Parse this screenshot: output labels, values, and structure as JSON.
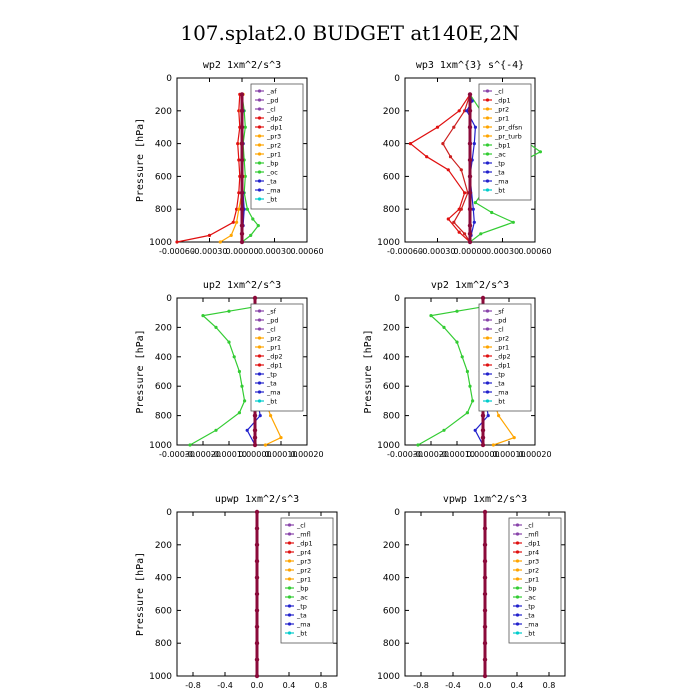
{
  "figure_title": "107.splat2.0  BUDGET at140E,2N",
  "chart_data": [
    {
      "type": "line",
      "title": "wp2  1xm^2/s^3",
      "ylabel": "Pressure [hPa]",
      "xlabel": "",
      "ylim": [
        1000,
        0
      ],
      "xlim": [
        -0.0006,
        0.0006
      ],
      "x_ticks": [
        "-0.00060",
        "-0.00030",
        "0.00000",
        "0.00030",
        "0.00060"
      ],
      "y_ticks": [
        "0",
        "200",
        "400",
        "600",
        "800",
        "1000"
      ],
      "legend": [
        "_af",
        "_pd",
        "_cl",
        "_dp2",
        "_dp1",
        "_pr3",
        "_pr2",
        "_pr1",
        "_bp",
        "_oc",
        "_ta",
        "_ma",
        "_bt"
      ],
      "series": [
        {
          "name": "_bp",
          "color": "#33cc33",
          "x": [
            0.0,
            2e-05,
            3e-05,
            1e-05,
            2e-05,
            3e-05,
            2e-05,
            5e-05,
            0.0001,
            0.00015,
            8e-05,
            0.0
          ],
          "y": [
            100,
            200,
            300,
            400,
            500,
            600,
            700,
            800,
            860,
            900,
            960,
            1000
          ]
        },
        {
          "name": "_pr3",
          "color": "#e01010",
          "x": [
            -2e-05,
            -3e-05,
            -2e-05,
            -4e-05,
            -3e-05,
            -2e-05,
            -3e-05,
            -5e-05,
            -8e-05,
            -0.0003,
            -0.0006
          ],
          "y": [
            100,
            200,
            300,
            400,
            500,
            600,
            700,
            800,
            880,
            960,
            1000
          ]
        },
        {
          "name": "_pr2",
          "color": "#ffa500",
          "x": [
            1e-05,
            -1e-05,
            0.0,
            -1e-05,
            0.0,
            1e-05,
            0.0,
            -3e-05,
            -5e-05,
            -0.0001,
            -0.0002
          ],
          "y": [
            100,
            200,
            300,
            400,
            500,
            600,
            700,
            800,
            880,
            960,
            1000
          ]
        },
        {
          "name": "_ta",
          "color": "#2222cc",
          "x": [
            0.0,
            1e-05,
            0.0,
            1e-05,
            0.0,
            0.0,
            1e-05,
            2e-05,
            1e-05,
            0.0
          ],
          "y": [
            100,
            200,
            300,
            400,
            500,
            600,
            700,
            800,
            900,
            1000
          ]
        },
        {
          "name": "_bt",
          "color": "#8b0a3a",
          "x": [
            0.0,
            0.0,
            0.0,
            0.0,
            0.0,
            0.0,
            0.0,
            0.0,
            0.0,
            0.0,
            0.0
          ],
          "y": [
            100,
            200,
            300,
            400,
            500,
            600,
            700,
            800,
            900,
            950,
            1000
          ]
        }
      ]
    },
    {
      "type": "line",
      "title": "wp3  1xm^{3} s^{-4}",
      "ylabel": "",
      "xlabel": "",
      "ylim": [
        1000,
        0
      ],
      "xlim": [
        -0.0006,
        0.0006
      ],
      "x_ticks": [
        "-0.00060",
        "-0.00030",
        "0.00000",
        "0.00030",
        "0.00060"
      ],
      "y_ticks": [
        "0",
        "200",
        "400",
        "600",
        "800",
        "1000"
      ],
      "legend": [
        "_cl",
        "_dp1",
        "_pr2",
        "_pr1",
        "_pr_dfsn",
        "_pr_turb",
        "_bp1",
        "_ac",
        "_tp",
        "_ta",
        "_ma",
        "_bt"
      ],
      "series": [
        {
          "name": "_bp1",
          "color": "#33cc33",
          "x": [
            0.0,
            0.0001,
            0.0003,
            0.0005,
            0.00065,
            0.00045,
            0.0002,
            5e-05,
            0.0002,
            0.0004,
            0.0001,
            0.0
          ],
          "y": [
            100,
            200,
            300,
            380,
            450,
            520,
            620,
            760,
            820,
            880,
            950,
            1000
          ]
        },
        {
          "name": "_pr2",
          "color": "#e01010",
          "x": [
            0.0,
            -0.0001,
            -0.0003,
            -0.00055,
            -0.0004,
            -0.0002,
            -5e-05,
            -0.0001,
            -0.0002,
            -0.0001,
            0.0
          ],
          "y": [
            100,
            200,
            300,
            400,
            480,
            560,
            700,
            800,
            860,
            940,
            1000
          ]
        },
        {
          "name": "_pr1",
          "color": "#cc2020",
          "x": [
            0.0,
            -5e-05,
            -0.00015,
            -0.00025,
            -0.00018,
            -8e-05,
            -2e-05,
            -8e-05,
            -0.00015,
            -5e-05,
            0.0
          ],
          "y": [
            100,
            200,
            300,
            400,
            480,
            560,
            700,
            800,
            880,
            950,
            1000
          ]
        },
        {
          "name": "_ta",
          "color": "#2222cc",
          "x": [
            0.0,
            2e-05,
            -3e-05,
            5e-05,
            4e-05,
            2e-05,
            0.0,
            3e-05,
            4e-05,
            1e-05,
            0.0
          ],
          "y": [
            100,
            140,
            200,
            300,
            400,
            500,
            600,
            800,
            880,
            960,
            1000
          ]
        },
        {
          "name": "_bt",
          "color": "#8b0a3a",
          "x": [
            0.0,
            0.0,
            0.0,
            0.0,
            0.0,
            0.0,
            0.0,
            0.0,
            0.0,
            0.0,
            0.0
          ],
          "y": [
            100,
            200,
            300,
            400,
            500,
            600,
            700,
            800,
            900,
            950,
            1000
          ]
        }
      ]
    },
    {
      "type": "line",
      "title": "up2  1xm^2/s^3",
      "ylabel": "Pressure [hPa]",
      "xlabel": "",
      "ylim": [
        1000,
        0
      ],
      "xlim": [
        -0.0003,
        0.0002
      ],
      "x_ticks": [
        "-0.00030",
        "-0.00020",
        "-0.00010",
        "0.00000",
        "0.00010",
        "0.00020"
      ],
      "y_ticks": [
        "0",
        "200",
        "400",
        "600",
        "800",
        "1000"
      ],
      "legend": [
        "_sf",
        "_pd",
        "_cl",
        "_pr2",
        "_pr1",
        "_dp2",
        "_dp1",
        "_tp",
        "_ta",
        "_ma",
        "_bt"
      ],
      "series": [
        {
          "name": "_pr1",
          "color": "#33cc33",
          "x": [
            0.0,
            -0.0001,
            -0.0002,
            -0.00015,
            -0.0001,
            -8e-05,
            -6e-05,
            -5e-05,
            -4e-05,
            -6e-05,
            -0.00015,
            -0.00025
          ],
          "y": [
            60,
            90,
            120,
            200,
            300,
            400,
            500,
            600,
            700,
            780,
            900,
            1000
          ]
        },
        {
          "name": "_pr2",
          "color": "#ffa500",
          "x": [
            5e-05,
            3e-05,
            1e-05,
            2e-05,
            2e-05,
            3e-05,
            3e-05,
            2e-05,
            4e-05,
            6e-05,
            0.0001,
            4e-05
          ],
          "y": [
            60,
            90,
            120,
            200,
            300,
            400,
            500,
            600,
            700,
            800,
            950,
            1000
          ]
        },
        {
          "name": "_tp",
          "color": "#2222cc",
          "x": [
            5e-05,
            3e-05,
            2e-05,
            2e-05,
            1e-05,
            1e-05,
            -1e-05,
            0.0,
            1e-05,
            2e-05,
            -3e-05,
            0.0
          ],
          "y": [
            60,
            90,
            120,
            200,
            300,
            400,
            500,
            600,
            700,
            800,
            900,
            1000
          ]
        },
        {
          "name": "_cl",
          "color": "#e01010",
          "x": [
            2e-05,
            1e-05,
            0.0,
            0.0,
            0.0,
            0.0,
            0.0,
            0.0,
            0.0,
            0.0,
            0.0,
            0.0
          ],
          "y": [
            60,
            90,
            120,
            200,
            300,
            400,
            500,
            600,
            700,
            800,
            900,
            1000
          ]
        },
        {
          "name": "_bt",
          "color": "#8b0a3a",
          "x": [
            0.0,
            0.0,
            0.0,
            0.0,
            0.0,
            0.0,
            0.0,
            0.0,
            0.0,
            0.0,
            0.0,
            0.0
          ],
          "y": [
            0,
            100,
            200,
            300,
            400,
            500,
            600,
            700,
            800,
            900,
            950,
            1000
          ]
        }
      ]
    },
    {
      "type": "line",
      "title": "vp2  1xm^2/s^3",
      "ylabel": "Pressure [hPa]",
      "xlabel": "",
      "ylim": [
        1000,
        0
      ],
      "xlim": [
        -0.0003,
        0.0002
      ],
      "x_ticks": [
        "-0.00030",
        "-0.00020",
        "-0.00010",
        "0.00000",
        "0.00010",
        "0.00020"
      ],
      "y_ticks": [
        "0",
        "200",
        "400",
        "600",
        "800",
        "1000"
      ],
      "legend": [
        "_sf",
        "_pd",
        "_cl",
        "_pr2",
        "_pr1",
        "_dp2",
        "_dp1",
        "_tp",
        "_ta",
        "_ma",
        "_bt"
      ],
      "series": [
        {
          "name": "_pr1",
          "color": "#33cc33",
          "x": [
            0.0,
            -0.0001,
            -0.0002,
            -0.00015,
            -0.0001,
            -8e-05,
            -6e-05,
            -5e-05,
            -4e-05,
            -6e-05,
            -0.00015,
            -0.00025
          ],
          "y": [
            60,
            90,
            120,
            200,
            300,
            400,
            500,
            600,
            700,
            780,
            900,
            1000
          ]
        },
        {
          "name": "_pr2",
          "color": "#ffa500",
          "x": [
            8e-05,
            4e-05,
            2e-05,
            2e-05,
            2e-05,
            3e-05,
            3e-05,
            2e-05,
            4e-05,
            6e-05,
            0.00012,
            4e-05
          ],
          "y": [
            60,
            90,
            120,
            200,
            300,
            400,
            500,
            600,
            700,
            800,
            950,
            1000
          ]
        },
        {
          "name": "_tp",
          "color": "#2222cc",
          "x": [
            0.0001,
            5e-05,
            2e-05,
            2e-05,
            1e-05,
            1e-05,
            -1e-05,
            0.0,
            1e-05,
            2e-05,
            -3e-05,
            0.0
          ],
          "y": [
            60,
            90,
            120,
            200,
            300,
            400,
            500,
            600,
            700,
            800,
            900,
            1000
          ]
        },
        {
          "name": "_cl",
          "color": "#e01010",
          "x": [
            2e-05,
            1e-05,
            0.0,
            0.0,
            0.0,
            0.0,
            0.0,
            0.0,
            0.0,
            0.0,
            0.0,
            0.0
          ],
          "y": [
            60,
            90,
            120,
            200,
            300,
            400,
            500,
            600,
            700,
            800,
            900,
            1000
          ]
        },
        {
          "name": "_bt",
          "color": "#8b0a3a",
          "x": [
            0.0,
            0.0,
            0.0,
            0.0,
            0.0,
            0.0,
            0.0,
            0.0,
            0.0,
            0.0,
            0.0,
            0.0
          ],
          "y": [
            0,
            100,
            200,
            300,
            400,
            500,
            600,
            700,
            800,
            900,
            950,
            1000
          ]
        }
      ]
    },
    {
      "type": "line",
      "title": "upwp  1xm^2/s^3",
      "ylabel": "Pressure [hPa]",
      "xlabel": "",
      "ylim": [
        1000,
        0
      ],
      "xlim": [
        -1.0,
        1.0
      ],
      "x_ticks": [
        "-0.8",
        "-0.4",
        "0.0",
        "0.4",
        "0.8"
      ],
      "y_ticks": [
        "0",
        "200",
        "400",
        "600",
        "800",
        "1000"
      ],
      "legend": [
        "_cl",
        "_mfl",
        "_dp1",
        "_pr4",
        "_pr3",
        "_pr2",
        "_pr1",
        "_bp",
        "_ac",
        "_tp",
        "_ta",
        "_ma",
        "_bt"
      ],
      "series": [
        {
          "name": "_bt",
          "color": "#8b0a3a",
          "x": [
            0.0,
            0.0,
            0.0,
            0.0,
            0.0,
            0.0,
            0.0,
            0.0,
            0.0,
            0.0,
            0.0
          ],
          "y": [
            0,
            100,
            200,
            300,
            400,
            500,
            600,
            700,
            800,
            900,
            1000
          ]
        }
      ]
    },
    {
      "type": "line",
      "title": "vpwp  1xm^2/s^3",
      "ylabel": "",
      "xlabel": "",
      "ylim": [
        1000,
        0
      ],
      "xlim": [
        -1.0,
        1.0
      ],
      "x_ticks": [
        "-0.8",
        "-0.4",
        "0.0",
        "0.4",
        "0.8"
      ],
      "y_ticks": [
        "0",
        "200",
        "400",
        "600",
        "800",
        "1000"
      ],
      "legend": [
        "_cl",
        "_mfl",
        "_dp1",
        "_pr4",
        "_pr3",
        "_pr2",
        "_pr1",
        "_bp",
        "_ac",
        "_tp",
        "_ta",
        "_ma",
        "_bt"
      ],
      "series": [
        {
          "name": "_bt",
          "color": "#8b0a3a",
          "x": [
            0.0,
            0.0,
            0.0,
            0.0,
            0.0,
            0.0,
            0.0,
            0.0,
            0.0,
            0.0,
            0.0
          ],
          "y": [
            0,
            100,
            200,
            300,
            400,
            500,
            600,
            700,
            800,
            900,
            1000
          ]
        }
      ]
    }
  ],
  "legend_colors": {
    "_af": "#8844aa",
    "_pd": "#8844aa",
    "_sf": "#8844aa",
    "_cl": "#8844aa",
    "_mfl": "#8844aa",
    "_dp2": "#e01010",
    "_dp1": "#e01010",
    "_pr4": "#e01010",
    "_pr3": "#ffa500",
    "_pr2": "#ffa500",
    "_pr1": "#ffa500",
    "_pr_dfsn": "#ffa500",
    "_pr_turb": "#ffa500",
    "_bp": "#33cc33",
    "_bp1": "#33cc33",
    "_oc": "#33cc33",
    "_ac": "#33cc33",
    "_tp": "#2222cc",
    "_ta": "#2222cc",
    "_ma": "#2222cc",
    "_bt": "#00cccc"
  }
}
